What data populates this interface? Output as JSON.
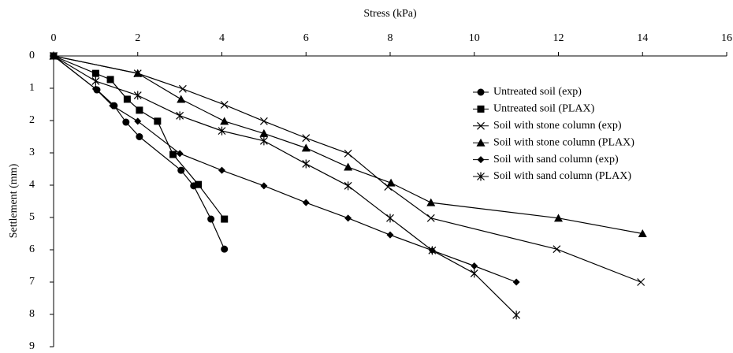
{
  "chart_data": {
    "type": "line",
    "x_label": "Stress (kPa)",
    "y_label": "Settlement (mm)",
    "xlim": [
      0,
      16
    ],
    "xticks": [
      0,
      2,
      4,
      6,
      8,
      10,
      12,
      14,
      16
    ],
    "ylim": [
      0,
      9
    ],
    "yticks": [
      0,
      1,
      2,
      3,
      4,
      5,
      6,
      7,
      8,
      9
    ],
    "y_inverted": true,
    "x_axis_position": "top",
    "legend": "upper right",
    "grid": false,
    "series": [
      {
        "name": "Untreated soil (exp)",
        "color": "#000000",
        "marker": "circle",
        "x": [
          0,
          1.03,
          1.44,
          1.72,
          2.04,
          3.03,
          3.33,
          3.74,
          4.06
        ],
        "values": [
          0,
          1.05,
          1.54,
          2.05,
          2.5,
          3.54,
          4.02,
          5.05,
          5.98
        ]
      },
      {
        "name": "Untreated soil (PLAX)",
        "color": "#000000",
        "marker": "square",
        "x": [
          0,
          1.0,
          1.35,
          1.75,
          2.04,
          2.47,
          2.84,
          3.44,
          4.06
        ],
        "values": [
          0,
          0.54,
          0.73,
          1.34,
          1.68,
          2.02,
          3.05,
          3.98,
          5.05
        ]
      },
      {
        "name": "Soil with stone column (exp)",
        "color": "#000000",
        "marker": "x",
        "x": [
          0,
          2,
          3.07,
          4.06,
          5,
          6,
          7,
          7.95,
          8.97,
          11.96,
          13.96
        ],
        "values": [
          0,
          0.54,
          1.02,
          1.51,
          2.02,
          2.54,
          3.02,
          4.05,
          5.02,
          5.98,
          7.0
        ]
      },
      {
        "name": "Soil with stone column (PLAX)",
        "color": "#000000",
        "marker": "triangle",
        "x": [
          0,
          2,
          3.03,
          4.06,
          5,
          6,
          7,
          8.02,
          8.97,
          12,
          14
        ],
        "values": [
          0,
          0.54,
          1.34,
          2.02,
          2.4,
          2.85,
          3.44,
          3.93,
          4.54,
          5.02,
          5.5
        ]
      },
      {
        "name": "Soil with sand column (exp)",
        "color": "#000000",
        "marker": "diamond",
        "x": [
          0,
          1,
          1.4,
          2,
          3,
          4,
          5,
          6,
          7,
          8,
          9,
          10,
          11
        ],
        "values": [
          0,
          1.02,
          1.54,
          2.02,
          3.02,
          3.54,
          4.02,
          4.54,
          5.02,
          5.54,
          6.02,
          6.5,
          7.0
        ]
      },
      {
        "name": "Soil with sand column (PLAX)",
        "color": "#000000",
        "marker": "star",
        "x": [
          0,
          1,
          2,
          3,
          4,
          5,
          6,
          7,
          8,
          9,
          10,
          11
        ],
        "values": [
          0,
          0.78,
          1.22,
          1.85,
          2.32,
          2.63,
          3.34,
          4.02,
          5.02,
          6.02,
          6.73,
          8.02
        ]
      }
    ]
  }
}
